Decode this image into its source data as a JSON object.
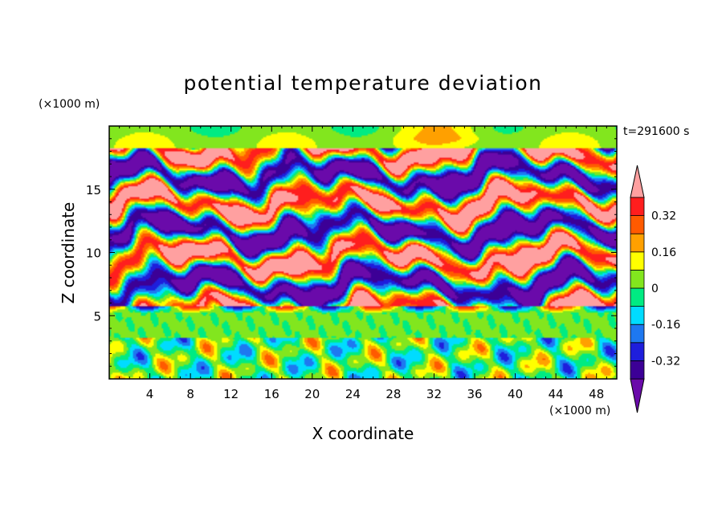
{
  "chart_data": {
    "type": "heatmap",
    "title": "potential temperature deviation",
    "time_label": "t=291600 s",
    "xlabel": "X coordinate",
    "ylabel": "Z coordinate",
    "x_unit": "(×1000 m)",
    "y_unit": "(×1000 m)",
    "xlim": [
      0,
      50
    ],
    "ylim": [
      0,
      20
    ],
    "xticks": [
      4,
      8,
      12,
      16,
      20,
      24,
      28,
      32,
      36,
      40,
      44,
      48
    ],
    "yticks": [
      5,
      10,
      15
    ],
    "colorbar": {
      "levels": [
        -0.4,
        -0.32,
        -0.24,
        -0.16,
        -0.08,
        0,
        0.08,
        0.16,
        0.24,
        0.32,
        0.4
      ],
      "labels": [
        "-0.32",
        "-0.16",
        "0",
        "0.16",
        "0.32"
      ],
      "label_values": [
        -0.32,
        -0.16,
        0,
        0.16,
        0.32
      ],
      "colors": [
        "#6a0aaa",
        "#3c0096",
        "#1e1edc",
        "#1e78f0",
        "#00dcff",
        "#00eb82",
        "#82e61e",
        "#ffff00",
        "#ffa000",
        "#ff5a00",
        "#ff1e1e",
        "#ffa0a0"
      ],
      "extend": "both"
    }
  }
}
